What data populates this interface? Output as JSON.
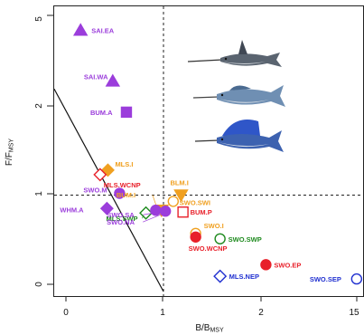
{
  "chart_data": {
    "type": "scatter",
    "xlabel": "B/B",
    "xlabel_sub": "MSY",
    "ylabel": "F/F",
    "ylabel_sub": "MSY",
    "x_ticks": [
      "0",
      "1",
      "2",
      "15"
    ],
    "y_ticks": [
      "0",
      "1",
      "2",
      "5"
    ],
    "reference_lines": {
      "x": 1,
      "y": 1,
      "style": "dashed"
    },
    "limit_line": {
      "x": [
        0,
        1
      ],
      "y": [
        2.17,
        0
      ]
    },
    "points": [
      {
        "label": "SAI.EA",
        "x": 0.15,
        "y": 2.85,
        "shape": "triangle-up",
        "filled": true,
        "color": "#9b3ddb"
      },
      {
        "label": "SAI.WA",
        "x": 0.48,
        "y": 2.28,
        "shape": "triangle-up",
        "filled": true,
        "color": "#9b3ddb"
      },
      {
        "label": "BUM.A",
        "x": 0.62,
        "y": 1.93,
        "shape": "square",
        "filled": true,
        "color": "#9b3ddb"
      },
      {
        "label": "MLS.I",
        "x": 0.43,
        "y": 1.28,
        "shape": "diamond",
        "filled": true,
        "color": "#f0a020"
      },
      {
        "label": "MLS.WCNP",
        "x": 0.35,
        "y": 1.23,
        "shape": "diamond",
        "filled": false,
        "color": "#e8202a"
      },
      {
        "label": "SWO.M",
        "x": 0.55,
        "y": 1.02,
        "shape": "circle",
        "filled": true,
        "color": "#9b3ddb"
      },
      {
        "label": "WHM.A",
        "x": 0.42,
        "y": 0.85,
        "shape": "diamond",
        "filled": true,
        "color": "#9b3ddb"
      },
      {
        "label": "BUM.I",
        "x": 0.98,
        "y": 0.83,
        "shape": "triangle-down",
        "filled": true,
        "color": "#f0a020"
      },
      {
        "label": "MLS.SWP",
        "x": 0.82,
        "y": 0.8,
        "shape": "diamond",
        "filled": false,
        "color": "#1e8a1e"
      },
      {
        "label": "SWO.SA",
        "x": 0.92,
        "y": 0.83,
        "shape": "circle",
        "filled": true,
        "color": "#9b3ddb"
      },
      {
        "label": "SWO.NA",
        "x": 1.02,
        "y": 0.82,
        "shape": "circle",
        "filled": true,
        "color": "#9b3ddb"
      },
      {
        "label": "BLM.I",
        "x": 1.18,
        "y": 1.0,
        "shape": "triangle-down",
        "filled": true,
        "color": "#f0a020"
      },
      {
        "label": "SWO.SWI",
        "x": 1.1,
        "y": 0.93,
        "shape": "circle",
        "filled": false,
        "color": "#f0a020"
      },
      {
        "label": "BUM.P",
        "x": 1.2,
        "y": 0.81,
        "shape": "square",
        "filled": false,
        "color": "#e8202a"
      },
      {
        "label": "SWO.I",
        "x": 1.33,
        "y": 0.57,
        "shape": "circle",
        "filled": false,
        "color": "#f0a020"
      },
      {
        "label": "SWO.WCNP",
        "x": 1.33,
        "y": 0.53,
        "shape": "circle",
        "filled": true,
        "color": "#e8202a"
      },
      {
        "label": "SWO.SWP",
        "x": 1.58,
        "y": 0.51,
        "shape": "circle",
        "filled": false,
        "color": "#1e8a1e"
      },
      {
        "label": "SWO.EP",
        "x": 2.05,
        "y": 0.22,
        "shape": "circle",
        "filled": true,
        "color": "#e8202a"
      },
      {
        "label": "MLS.NEP",
        "x": 1.58,
        "y": 0.09,
        "shape": "diamond",
        "filled": false,
        "color": "#2030d0"
      },
      {
        "label": "SWO.SEP",
        "x": 2.98,
        "y": 0.06,
        "shape": "circle",
        "filled": false,
        "color": "#2030d0"
      }
    ]
  },
  "images": {
    "fish": [
      "swordfish",
      "marlin",
      "sailfish"
    ]
  }
}
